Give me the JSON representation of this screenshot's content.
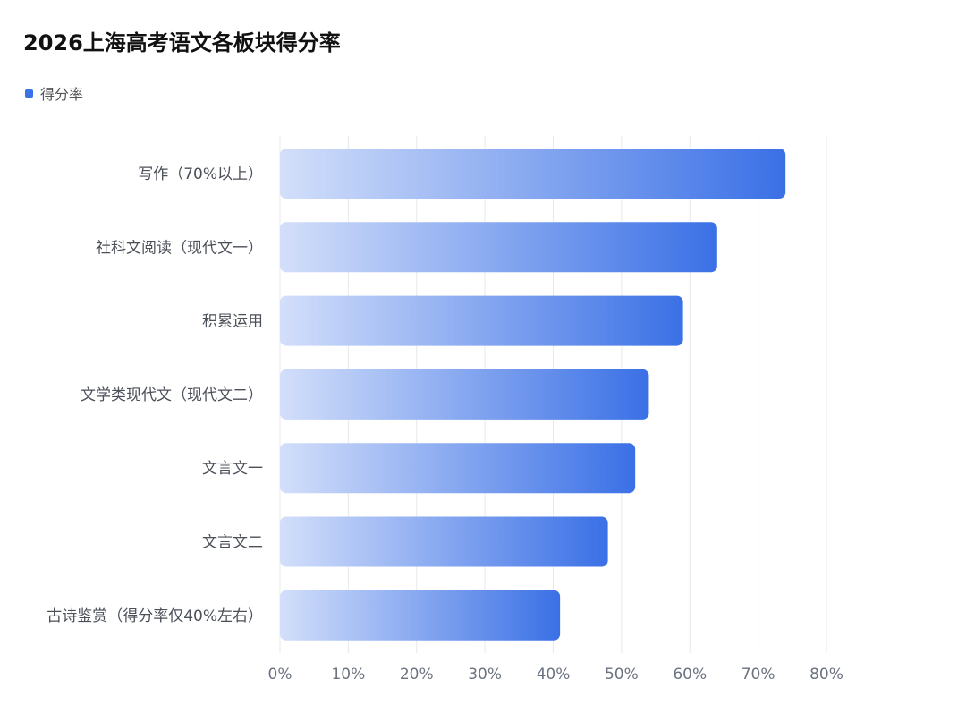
{
  "chart_data": {
    "type": "bar",
    "orientation": "horizontal",
    "title": "2026上海高考语文各板块得分率",
    "legend": [
      "得分率"
    ],
    "legend_position": "top-left",
    "series": [
      {
        "name": "得分率",
        "values": [
          74,
          64,
          59,
          54,
          52,
          48,
          41
        ]
      }
    ],
    "categories": [
      "写作（70%以上）",
      "社科文阅读（现代文一）",
      "积累运用",
      "文学类现代文（现代文二）",
      "文言文一",
      "文言文二",
      "古诗鉴赏（得分率仅40%左右）"
    ],
    "xlim": [
      0,
      80
    ],
    "xticks": [
      "0%",
      "10%",
      "20%",
      "30%",
      "40%",
      "50%",
      "60%",
      "70%",
      "80%"
    ],
    "grid": "vertical",
    "colors": {
      "bar_start": "#d3dffa",
      "bar_end": "#3a70e6",
      "grid": "#e8e9ee"
    }
  }
}
